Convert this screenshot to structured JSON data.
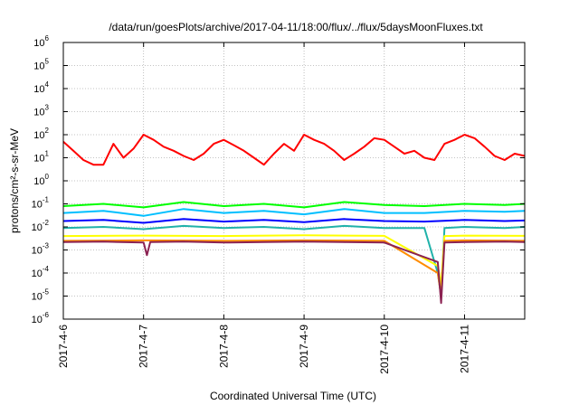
{
  "chart_data": {
    "type": "line",
    "title": "/data/run/goesPlots/archive/2017-04-11/18:00/flux/../flux/5daysMoonFluxes.txt",
    "xlabel": "Coordinated Universal Time (UTC)",
    "ylabel": "protons/cm²-s-sr-MeV",
    "y_scale": "log",
    "ylim": [
      1e-06,
      1000000.0
    ],
    "y_ticks": [
      {
        "base": "10",
        "exp": "-6"
      },
      {
        "base": "10",
        "exp": "-5"
      },
      {
        "base": "10",
        "exp": "-4"
      },
      {
        "base": "10",
        "exp": "-3"
      },
      {
        "base": "10",
        "exp": "-2"
      },
      {
        "base": "10",
        "exp": "-1"
      },
      {
        "base": "10",
        "exp": "0"
      },
      {
        "base": "10",
        "exp": "1"
      },
      {
        "base": "10",
        "exp": "2"
      },
      {
        "base": "10",
        "exp": "3"
      },
      {
        "base": "10",
        "exp": "4"
      },
      {
        "base": "10",
        "exp": "5"
      },
      {
        "base": "10",
        "exp": "6"
      }
    ],
    "xlim": [
      "2017-04-06",
      "2017-04-11 18:00"
    ],
    "x_ticks": [
      "2017-4-6",
      "2017-4-7",
      "2017-4-8",
      "2017-4-9",
      "2017-4-10",
      "2017-4-11"
    ],
    "grid": true,
    "legend": "none",
    "series": [
      {
        "color": "#ff0000",
        "x": [
          "2017-04-06 00:00",
          "2017-04-06 03:00",
          "2017-04-06 06:00",
          "2017-04-06 09:00",
          "2017-04-06 12:00",
          "2017-04-06 15:00",
          "2017-04-06 18:00",
          "2017-04-06 21:00",
          "2017-04-07 00:00",
          "2017-04-07 03:00",
          "2017-04-07 06:00",
          "2017-04-07 09:00",
          "2017-04-07 12:00",
          "2017-04-07 15:00",
          "2017-04-07 18:00",
          "2017-04-07 21:00",
          "2017-04-08 00:00",
          "2017-04-08 03:00",
          "2017-04-08 06:00",
          "2017-04-08 09:00",
          "2017-04-08 12:00",
          "2017-04-08 15:00",
          "2017-04-08 18:00",
          "2017-04-08 21:00",
          "2017-04-09 00:00",
          "2017-04-09 03:00",
          "2017-04-09 06:00",
          "2017-04-09 09:00",
          "2017-04-09 12:00",
          "2017-04-09 15:00",
          "2017-04-09 18:00",
          "2017-04-09 21:00",
          "2017-04-10 00:00",
          "2017-04-10 03:00",
          "2017-04-10 06:00",
          "2017-04-10 09:00",
          "2017-04-10 12:00",
          "2017-04-10 15:00",
          "2017-04-10 18:00",
          "2017-04-10 21:00",
          "2017-04-11 00:00",
          "2017-04-11 03:00",
          "2017-04-11 06:00",
          "2017-04-11 09:00",
          "2017-04-11 12:00",
          "2017-04-11 15:00",
          "2017-04-11 18:00"
        ],
        "values": [
          50,
          20,
          8,
          5,
          5,
          40,
          10,
          25,
          100,
          60,
          30,
          20,
          12,
          8,
          15,
          40,
          60,
          35,
          20,
          10,
          5,
          15,
          40,
          20,
          100,
          60,
          40,
          20,
          8,
          15,
          30,
          70,
          60,
          30,
          15,
          20,
          10,
          8,
          40,
          60,
          100,
          70,
          30,
          12,
          8,
          15,
          12
        ]
      },
      {
        "color": "#00ff00",
        "x": [
          "2017-04-06 00:00",
          "2017-04-06 12:00",
          "2017-04-07 00:00",
          "2017-04-07 12:00",
          "2017-04-08 00:00",
          "2017-04-08 12:00",
          "2017-04-09 00:00",
          "2017-04-09 12:00",
          "2017-04-10 00:00",
          "2017-04-10 12:00",
          "2017-04-11 00:00",
          "2017-04-11 12:00",
          "2017-04-11 18:00"
        ],
        "values": [
          0.08,
          0.1,
          0.07,
          0.12,
          0.08,
          0.1,
          0.07,
          0.12,
          0.09,
          0.08,
          0.1,
          0.09,
          0.1
        ]
      },
      {
        "color": "#00bfff",
        "x": [
          "2017-04-06 00:00",
          "2017-04-06 12:00",
          "2017-04-07 00:00",
          "2017-04-07 12:00",
          "2017-04-08 00:00",
          "2017-04-08 12:00",
          "2017-04-09 00:00",
          "2017-04-09 12:00",
          "2017-04-10 00:00",
          "2017-04-10 12:00",
          "2017-04-11 00:00",
          "2017-04-11 12:00",
          "2017-04-11 18:00"
        ],
        "values": [
          0.04,
          0.05,
          0.03,
          0.06,
          0.04,
          0.05,
          0.035,
          0.06,
          0.04,
          0.04,
          0.05,
          0.045,
          0.05
        ]
      },
      {
        "color": "#0000ff",
        "x": [
          "2017-04-06 00:00",
          "2017-04-06 12:00",
          "2017-04-07 00:00",
          "2017-04-07 12:00",
          "2017-04-08 00:00",
          "2017-04-08 12:00",
          "2017-04-09 00:00",
          "2017-04-09 12:00",
          "2017-04-10 00:00",
          "2017-04-10 12:00",
          "2017-04-11 00:00",
          "2017-04-11 12:00",
          "2017-04-11 18:00"
        ],
        "values": [
          0.018,
          0.02,
          0.015,
          0.022,
          0.017,
          0.02,
          0.016,
          0.022,
          0.018,
          0.017,
          0.02,
          0.018,
          0.019
        ]
      },
      {
        "color": "#20b2aa",
        "x": [
          "2017-04-06 00:00",
          "2017-04-06 12:00",
          "2017-04-07 00:00",
          "2017-04-07 12:00",
          "2017-04-08 00:00",
          "2017-04-08 12:00",
          "2017-04-09 00:00",
          "2017-04-09 12:00",
          "2017-04-10 00:00",
          "2017-04-10 12:00",
          "2017-04-10 16:00",
          "2017-04-10 17:00",
          "2017-04-10 18:00",
          "2017-04-11 00:00",
          "2017-04-11 12:00",
          "2017-04-11 18:00"
        ],
        "values": [
          0.009,
          0.01,
          0.008,
          0.011,
          0.009,
          0.01,
          0.008,
          0.011,
          0.009,
          0.009,
          0.0001,
          1e-05,
          0.009,
          0.01,
          0.009,
          0.01
        ]
      },
      {
        "color": "#ffff00",
        "x": [
          "2017-04-06 00:00",
          "2017-04-07 00:00",
          "2017-04-08 00:00",
          "2017-04-09 00:00",
          "2017-04-10 00:00",
          "2017-04-10 16:00",
          "2017-04-10 17:00",
          "2017-04-10 18:00",
          "2017-04-11 00:00",
          "2017-04-11 18:00"
        ],
        "values": [
          0.004,
          0.0042,
          0.004,
          0.0043,
          0.0041,
          0.0002,
          3e-05,
          0.004,
          0.0042,
          0.0041
        ]
      },
      {
        "color": "#ff8c00",
        "x": [
          "2017-04-06 00:00",
          "2017-04-07 00:00",
          "2017-04-08 00:00",
          "2017-04-09 00:00",
          "2017-04-10 00:00",
          "2017-04-10 16:00",
          "2017-04-10 17:00",
          "2017-04-10 18:00",
          "2017-04-11 00:00",
          "2017-04-11 18:00"
        ],
        "values": [
          0.0025,
          0.0026,
          0.0025,
          0.0026,
          0.0025,
          0.0001,
          1e-05,
          0.0025,
          0.0026,
          0.0025
        ]
      },
      {
        "color": "#8b2252",
        "x": [
          "2017-04-06 00:00",
          "2017-04-06 12:00",
          "2017-04-07 00:00",
          "2017-04-07 01:00",
          "2017-04-07 02:00",
          "2017-04-07 12:00",
          "2017-04-08 00:00",
          "2017-04-08 12:00",
          "2017-04-09 00:00",
          "2017-04-09 12:00",
          "2017-04-10 00:00",
          "2017-04-10 16:00",
          "2017-04-10 17:00",
          "2017-04-10 18:00",
          "2017-04-11 00:00",
          "2017-04-11 12:00",
          "2017-04-11 18:00"
        ],
        "values": [
          0.0022,
          0.0023,
          0.0021,
          0.0006,
          0.0022,
          0.0023,
          0.0021,
          0.0022,
          0.0023,
          0.0022,
          0.0021,
          0.0003,
          5e-06,
          0.0021,
          0.0022,
          0.0023,
          0.0022
        ]
      }
    ]
  }
}
